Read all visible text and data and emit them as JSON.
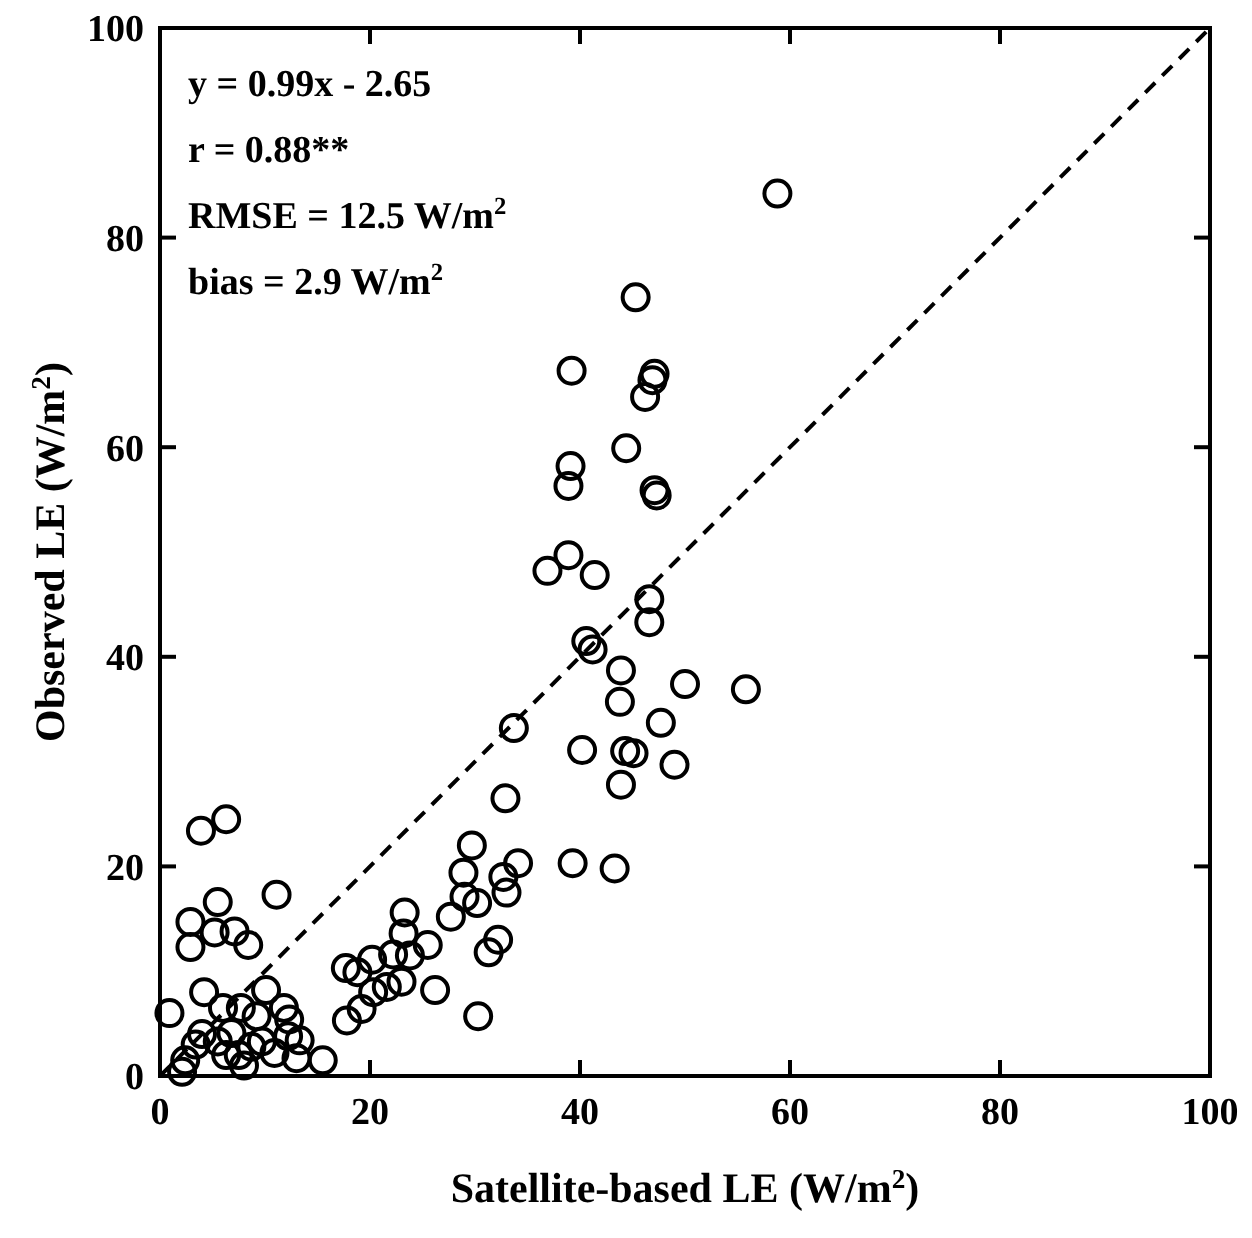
{
  "chart_data": {
    "type": "scatter",
    "xlabel": "Satellite-based LE (W/m$^{2}$)",
    "ylabel": "Observed LE (W/m$^{2}$)",
    "xlim": [
      0,
      100
    ],
    "ylim": [
      0,
      100
    ],
    "xticks": [
      0,
      20,
      40,
      60,
      80,
      100
    ],
    "yticks": [
      0,
      20,
      40,
      60,
      80,
      100
    ],
    "grid": false,
    "annotations": [
      "y = 0.99x - 2.65",
      "r = 0.88**",
      "RMSE = 12.5 W/m$^{2}$",
      "bias = 2.9 W/m$^{2}$"
    ],
    "series": [
      {
        "color": "#000000",
        "marker": "circle",
        "x": [
          58.8,
          45.3,
          47.1,
          46.9,
          46.2,
          39.2,
          39.1,
          38.9,
          38.9,
          36.9,
          44.4,
          41.4,
          47.1,
          47.3,
          46.6,
          46.6,
          40.6,
          41.2,
          43.9,
          43.8,
          50,
          55.8,
          47.7,
          44.3,
          45.1,
          40.2,
          43.9,
          49,
          33.7,
          32.9,
          39.3,
          43.3,
          34.1,
          32.7,
          33.0,
          29.7,
          28.9,
          29.0,
          30.2,
          27.7,
          32.2,
          31.3,
          30.3,
          23.3,
          23.2,
          22.2,
          25.5,
          26.2,
          21.6,
          20.3,
          20.2,
          18.8,
          19.2,
          17.7,
          17.8,
          23.8,
          23.0,
          15.5,
          13.3,
          11.1,
          3.9,
          6.3,
          2.9,
          5.5,
          5.2,
          7.1,
          2.9,
          8.4,
          0.9,
          4.2,
          6.0,
          6.8,
          7.7,
          4.0,
          3.4,
          5.5,
          7.5,
          8.7,
          9.2,
          10.1,
          11.8,
          12.3,
          12.2,
          10.9,
          9.7,
          6.3,
          2.4,
          2.1,
          8.0,
          13.0
        ],
        "values": [
          84.2,
          74.3,
          67.0,
          66.4,
          64.8,
          67.3,
          58.2,
          56.3,
          49.7,
          48.2,
          59.9,
          47.8,
          55.9,
          55.4,
          45.5,
          43.3,
          41.5,
          40.7,
          38.7,
          35.7,
          37.4,
          36.9,
          33.7,
          31.0,
          30.8,
          31.1,
          27.8,
          29.7,
          33.2,
          26.5,
          20.3,
          19.8,
          20.3,
          19.0,
          17.5,
          22.0,
          19.4,
          17.1,
          16.5,
          15.2,
          13.0,
          11.8,
          5.7,
          15.6,
          13.6,
          11.6,
          12.5,
          8.2,
          8.5,
          8.0,
          11.1,
          9.9,
          6.4,
          10.3,
          5.3,
          11.5,
          9.0,
          1.5,
          3.4,
          17.3,
          23.4,
          24.5,
          14.7,
          16.6,
          13.7,
          13.8,
          12.3,
          12.5,
          6.0,
          8.0,
          6.5,
          4.1,
          6.5,
          4.0,
          3.0,
          3.3,
          2.0,
          2.8,
          5.7,
          8.2,
          6.5,
          5.4,
          3.8,
          2.2,
          3.3,
          2.0,
          1.5,
          0.4,
          1.0,
          1.7
        ]
      },
      {
        "type": "line",
        "color": "#000000",
        "line_style": "dashed",
        "x": [
          0,
          100
        ],
        "values": [
          0,
          100
        ]
      }
    ]
  }
}
